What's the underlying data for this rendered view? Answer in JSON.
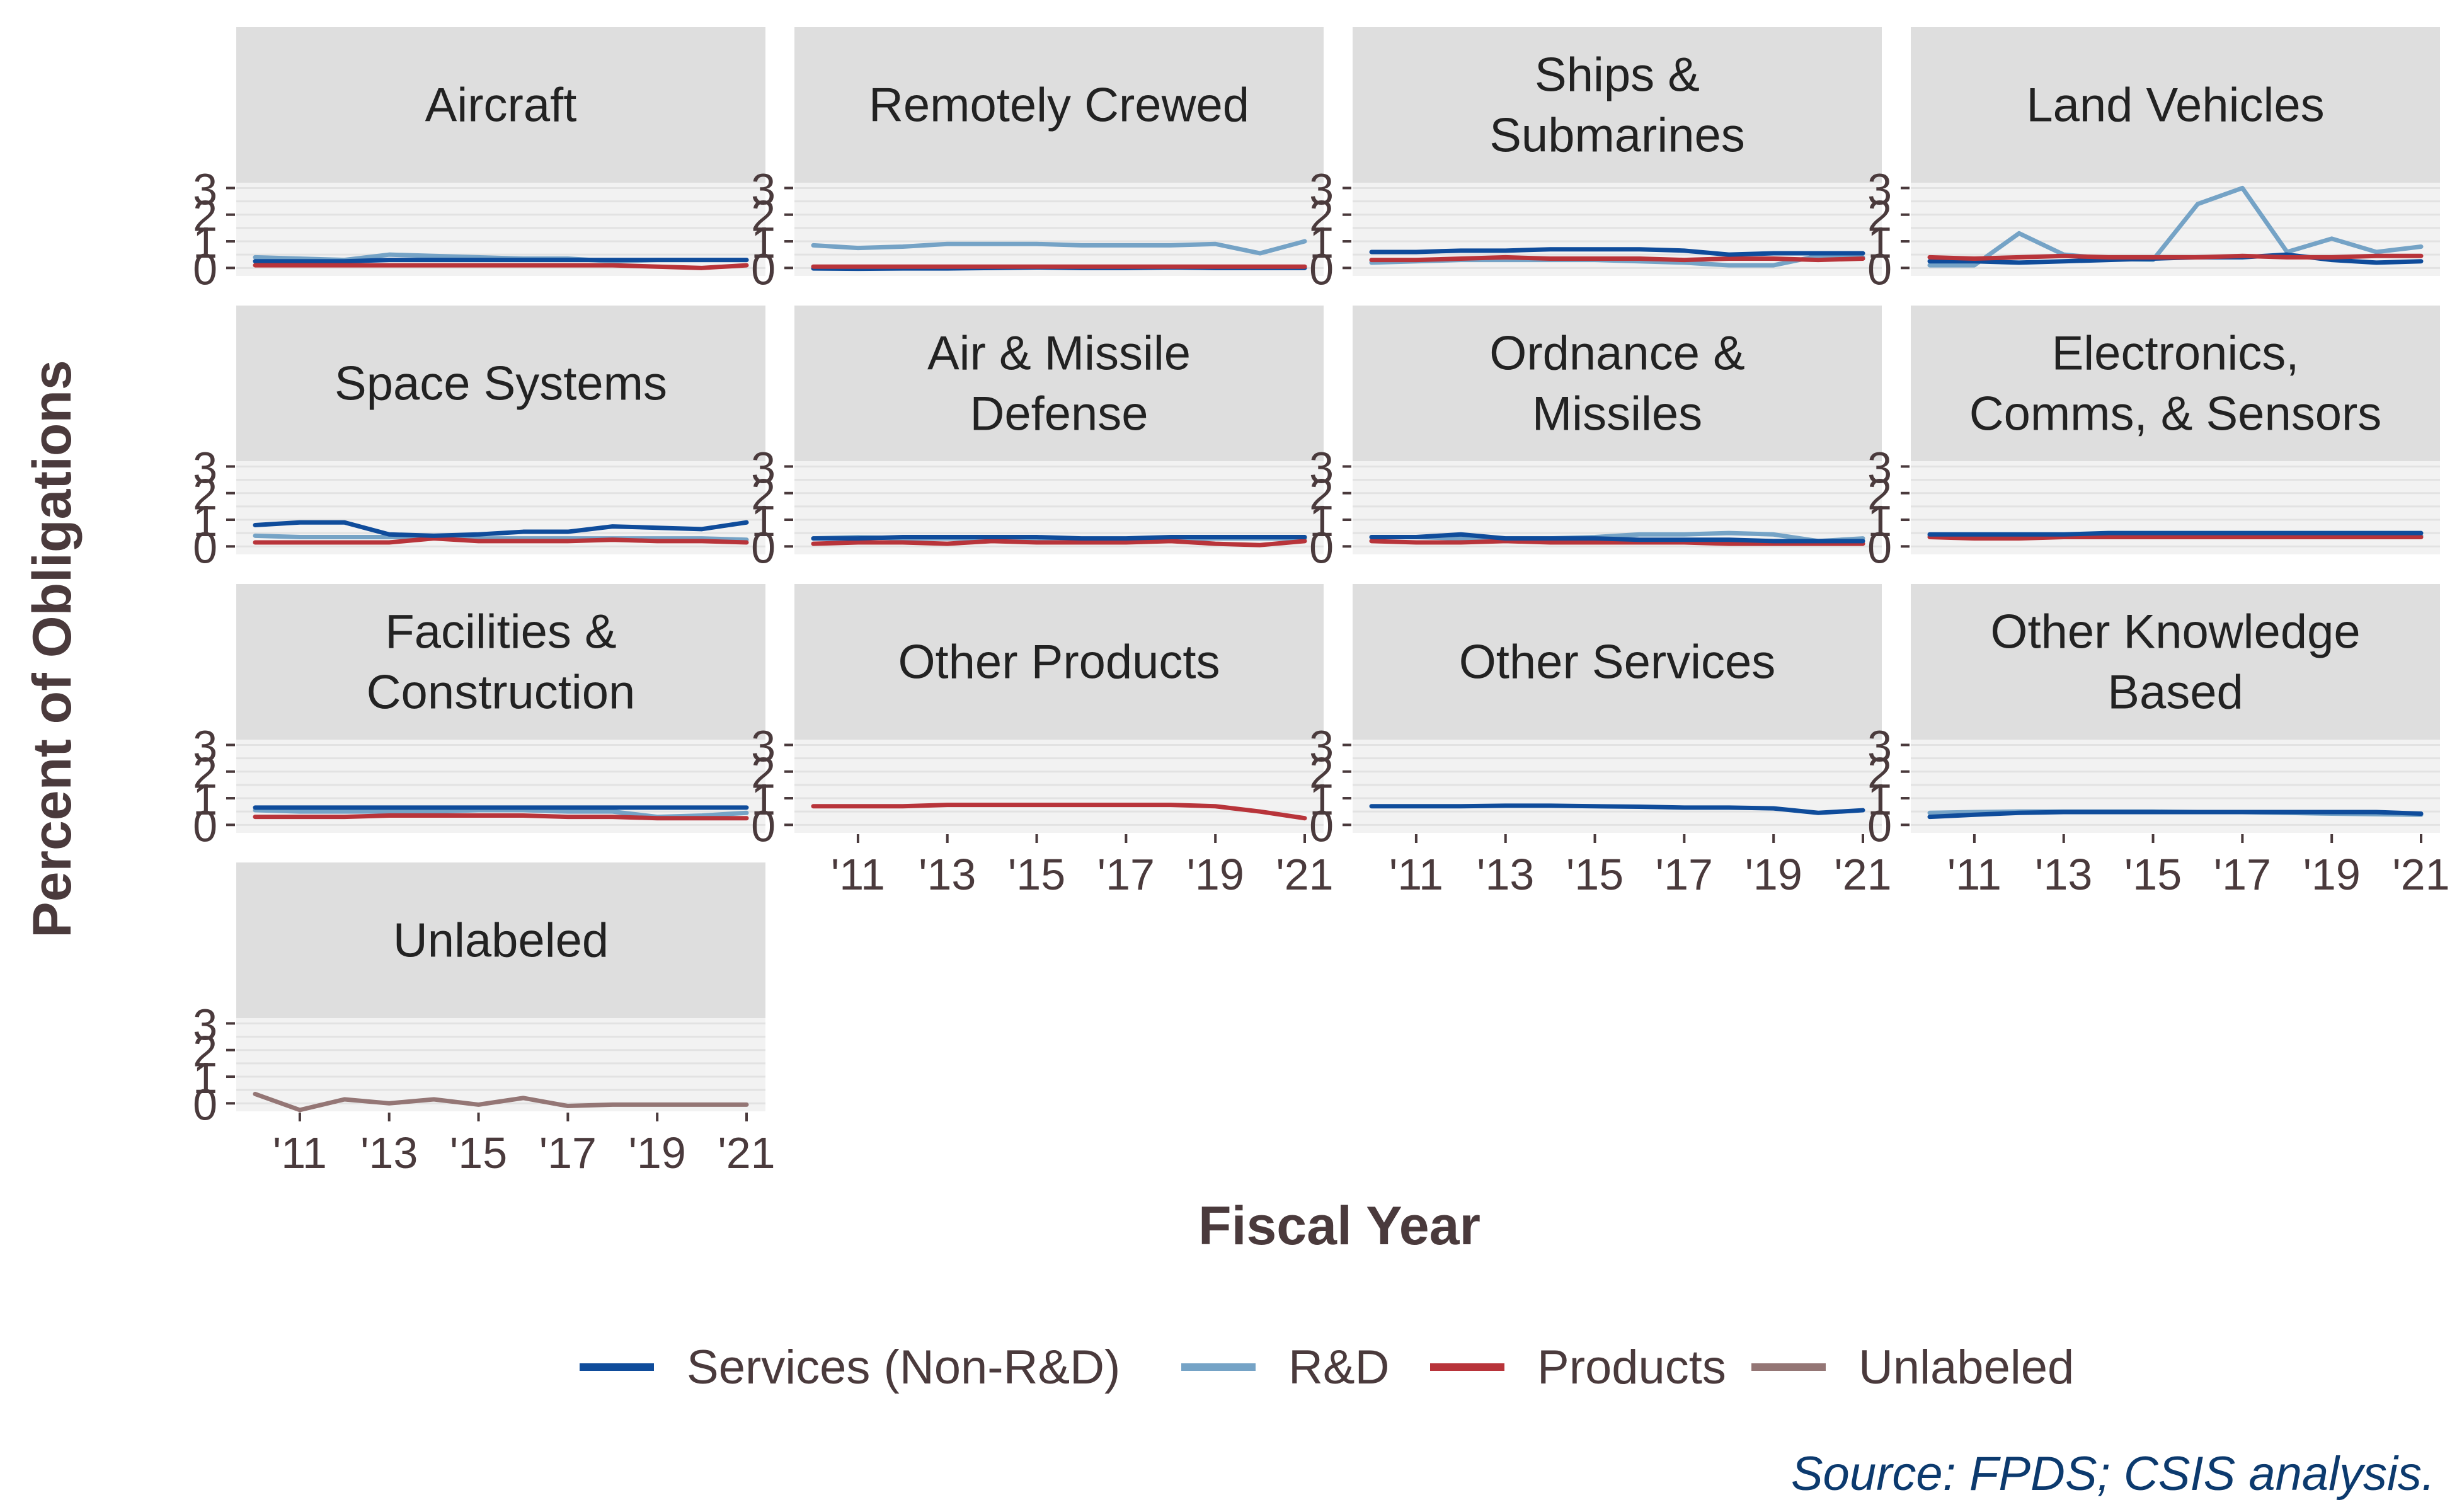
{
  "chart_data": {
    "type": "line",
    "ylabel": "Percent of Obligations",
    "xlabel": "Fiscal Year",
    "source": "Source: FPDS; CSIS analysis.",
    "x": [
      2010,
      2011,
      2012,
      2013,
      2014,
      2015,
      2016,
      2017,
      2018,
      2019,
      2020,
      2021
    ],
    "xticks": [
      "'11",
      "'13",
      "'15",
      "'17",
      "'19",
      "'21"
    ],
    "yticks": [
      "0",
      "1",
      "2",
      "3"
    ],
    "ylim": [
      -0.3,
      3.2
    ],
    "grid": true,
    "legend_position": "bottom",
    "legend": [
      {
        "key": "services",
        "label": "Services (Non-R&D)",
        "color": "#0f4c9b"
      },
      {
        "key": "rd",
        "label": "R&D",
        "color": "#75a3c6"
      },
      {
        "key": "products",
        "label": "Products",
        "color": "#b8343a"
      },
      {
        "key": "unlabeled",
        "label": "Unlabeled",
        "color": "#947675"
      }
    ],
    "panels": [
      {
        "title": [
          "Aircraft"
        ],
        "series": [
          {
            "key": "rd",
            "values": [
              0.4,
              0.35,
              0.3,
              0.5,
              0.45,
              0.4,
              0.35,
              0.35,
              0.25,
              0.3,
              0.3,
              0.3
            ]
          },
          {
            "key": "services",
            "values": [
              0.25,
              0.25,
              0.25,
              0.3,
              0.3,
              0.3,
              0.3,
              0.3,
              0.3,
              0.3,
              0.3,
              0.3
            ]
          },
          {
            "key": "products",
            "values": [
              0.1,
              0.1,
              0.1,
              0.1,
              0.1,
              0.1,
              0.1,
              0.1,
              0.1,
              0.05,
              0.0,
              0.1
            ]
          }
        ]
      },
      {
        "title": [
          "Remotely Crewed"
        ],
        "series": [
          {
            "key": "rd",
            "values": [
              0.85,
              0.75,
              0.8,
              0.9,
              0.9,
              0.9,
              0.85,
              0.85,
              0.85,
              0.9,
              0.55,
              1.0
            ]
          },
          {
            "key": "services",
            "values": [
              -0.02,
              -0.03,
              -0.02,
              -0.02,
              0.0,
              0.02,
              0.0,
              0.0,
              0.02,
              0.0,
              0.0,
              0.0
            ]
          },
          {
            "key": "products",
            "values": [
              0.05,
              0.05,
              0.05,
              0.05,
              0.05,
              0.05,
              0.05,
              0.05,
              0.05,
              0.05,
              0.05,
              0.05
            ]
          }
        ]
      },
      {
        "title": [
          "Ships &",
          "Submarines"
        ],
        "series": [
          {
            "key": "rd",
            "values": [
              0.2,
              0.25,
              0.3,
              0.3,
              0.3,
              0.3,
              0.25,
              0.2,
              0.1,
              0.1,
              0.45,
              0.4
            ]
          },
          {
            "key": "products",
            "values": [
              0.3,
              0.3,
              0.35,
              0.4,
              0.35,
              0.35,
              0.35,
              0.3,
              0.35,
              0.35,
              0.3,
              0.35
            ]
          },
          {
            "key": "services",
            "values": [
              0.6,
              0.6,
              0.65,
              0.65,
              0.7,
              0.7,
              0.7,
              0.65,
              0.5,
              0.55,
              0.55,
              0.55
            ]
          }
        ]
      },
      {
        "title": [
          "Land Vehicles"
        ],
        "series": [
          {
            "key": "rd",
            "values": [
              0.1,
              0.1,
              1.3,
              0.5,
              0.35,
              0.3,
              2.4,
              3.0,
              0.6,
              1.1,
              0.6,
              0.8
            ]
          },
          {
            "key": "services",
            "values": [
              0.25,
              0.25,
              0.2,
              0.25,
              0.3,
              0.35,
              0.4,
              0.4,
              0.5,
              0.3,
              0.2,
              0.25
            ]
          },
          {
            "key": "products",
            "values": [
              0.4,
              0.35,
              0.4,
              0.45,
              0.4,
              0.4,
              0.4,
              0.45,
              0.4,
              0.4,
              0.45,
              0.45
            ]
          }
        ]
      },
      {
        "title": [
          "Space Systems"
        ],
        "series": [
          {
            "key": "rd",
            "values": [
              0.4,
              0.35,
              0.35,
              0.35,
              0.35,
              0.3,
              0.3,
              0.3,
              0.3,
              0.3,
              0.3,
              0.25
            ]
          },
          {
            "key": "products",
            "values": [
              0.15,
              0.15,
              0.15,
              0.15,
              0.3,
              0.2,
              0.2,
              0.2,
              0.25,
              0.2,
              0.2,
              0.15
            ]
          },
          {
            "key": "services",
            "values": [
              0.8,
              0.9,
              0.9,
              0.45,
              0.4,
              0.45,
              0.55,
              0.55,
              0.75,
              0.7,
              0.65,
              0.9
            ]
          }
        ]
      },
      {
        "title": [
          "Air & Missile",
          "Defense"
        ],
        "series": [
          {
            "key": "rd",
            "values": [
              0.3,
              0.35,
              0.3,
              0.3,
              0.3,
              0.3,
              0.2,
              0.2,
              0.25,
              0.3,
              0.3,
              0.3
            ]
          },
          {
            "key": "products",
            "values": [
              0.1,
              0.15,
              0.15,
              0.1,
              0.2,
              0.15,
              0.15,
              0.15,
              0.2,
              0.1,
              0.05,
              0.2
            ]
          },
          {
            "key": "services",
            "values": [
              0.3,
              0.3,
              0.35,
              0.35,
              0.35,
              0.35,
              0.3,
              0.3,
              0.35,
              0.35,
              0.35,
              0.35
            ]
          }
        ]
      },
      {
        "title": [
          "Ordnance &",
          "Missiles"
        ],
        "series": [
          {
            "key": "rd",
            "values": [
              0.35,
              0.35,
              0.3,
              0.3,
              0.3,
              0.35,
              0.45,
              0.45,
              0.5,
              0.45,
              0.2,
              0.3
            ]
          },
          {
            "key": "products",
            "values": [
              0.2,
              0.15,
              0.15,
              0.2,
              0.15,
              0.15,
              0.15,
              0.15,
              0.1,
              0.1,
              0.1,
              0.1
            ]
          },
          {
            "key": "services",
            "values": [
              0.35,
              0.35,
              0.45,
              0.3,
              0.3,
              0.3,
              0.25,
              0.25,
              0.25,
              0.2,
              0.2,
              0.2
            ]
          }
        ]
      },
      {
        "title": [
          "Electronics,",
          "Comms, & Sensors"
        ],
        "series": [
          {
            "key": "rd",
            "values": [
              0.4,
              0.4,
              0.4,
              0.4,
              0.4,
              0.4,
              0.4,
              0.4,
              0.4,
              0.4,
              0.4,
              0.4
            ]
          },
          {
            "key": "products",
            "values": [
              0.35,
              0.3,
              0.3,
              0.35,
              0.35,
              0.35,
              0.35,
              0.35,
              0.35,
              0.35,
              0.35,
              0.35
            ]
          },
          {
            "key": "services",
            "values": [
              0.45,
              0.45,
              0.45,
              0.45,
              0.5,
              0.5,
              0.5,
              0.5,
              0.5,
              0.5,
              0.5,
              0.5
            ]
          }
        ]
      },
      {
        "title": [
          "Facilities &",
          "Construction"
        ],
        "series": [
          {
            "key": "rd",
            "values": [
              0.55,
              0.5,
              0.5,
              0.5,
              0.5,
              0.55,
              0.55,
              0.5,
              0.5,
              0.3,
              0.35,
              0.45
            ]
          },
          {
            "key": "products",
            "values": [
              0.3,
              0.3,
              0.3,
              0.35,
              0.35,
              0.35,
              0.35,
              0.3,
              0.3,
              0.25,
              0.25,
              0.25
            ]
          },
          {
            "key": "services",
            "values": [
              0.65,
              0.65,
              0.65,
              0.65,
              0.65,
              0.65,
              0.65,
              0.65,
              0.65,
              0.65,
              0.65,
              0.65
            ]
          }
        ]
      },
      {
        "title": [
          "Other Products"
        ],
        "series": [
          {
            "key": "products",
            "values": [
              0.7,
              0.7,
              0.7,
              0.75,
              0.75,
              0.75,
              0.75,
              0.75,
              0.75,
              0.7,
              0.5,
              0.25
            ]
          }
        ]
      },
      {
        "title": [
          "Other Services"
        ],
        "series": [
          {
            "key": "services",
            "values": [
              0.7,
              0.7,
              0.7,
              0.72,
              0.72,
              0.7,
              0.68,
              0.65,
              0.65,
              0.62,
              0.45,
              0.55
            ]
          }
        ]
      },
      {
        "title": [
          "Other Knowledge",
          "Based"
        ],
        "series": [
          {
            "key": "rd",
            "values": [
              0.45,
              0.48,
              0.5,
              0.5,
              0.5,
              0.5,
              0.48,
              0.48,
              0.45,
              0.42,
              0.4,
              0.38
            ]
          },
          {
            "key": "services",
            "values": [
              0.3,
              0.38,
              0.45,
              0.48,
              0.48,
              0.48,
              0.48,
              0.48,
              0.48,
              0.48,
              0.48,
              0.42
            ]
          }
        ]
      },
      {
        "title": [
          "Unlabeled"
        ],
        "series": [
          {
            "key": "unlabeled",
            "values": [
              0.35,
              -0.25,
              0.15,
              0.0,
              0.15,
              -0.05,
              0.2,
              -0.1,
              -0.05,
              -0.05,
              -0.05,
              -0.05
            ]
          }
        ]
      }
    ]
  }
}
